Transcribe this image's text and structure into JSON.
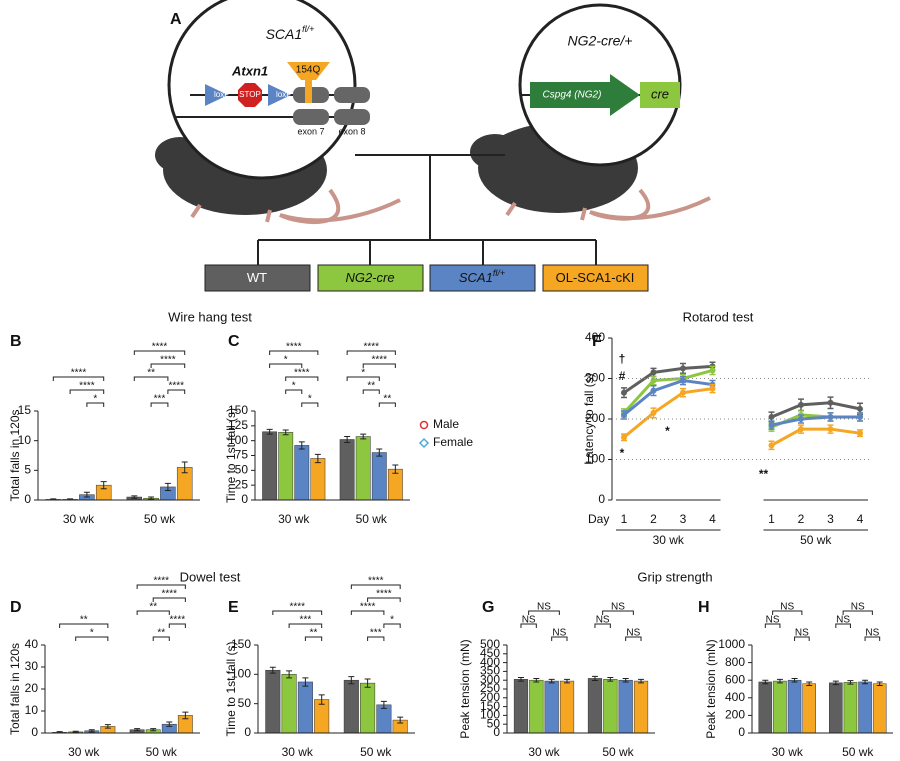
{
  "diagram": {
    "panel": "A",
    "left_title": "SCA1",
    "left_title_sup": "fl/+",
    "gene": "Atxn1",
    "loxp_1": "loxP",
    "stop": "STOP",
    "loxp_2": "loxP",
    "repeat": "154Q",
    "exon_a": "exon 7",
    "exon_b": "exon 8",
    "right_title": "NG2-cre/+",
    "promoter": "Cspg4 (NG2)",
    "cre": "cre"
  },
  "genotypes": [
    {
      "label": "WT",
      "color": "#5f5f5f"
    },
    {
      "label": "NG2-cre",
      "color": "#8dc63f"
    },
    {
      "label": "SCA1",
      "sup": "fl/+",
      "color": "#5b84c4"
    },
    {
      "label": "OL-SCA1-cKI",
      "color": "#f5a623"
    }
  ],
  "section_titles": [
    "Wire hang test",
    "Rotarod test",
    "Dowel test",
    "Grip strength"
  ],
  "sex_legend": [
    {
      "label": "Male",
      "color": "#e03030"
    },
    {
      "label": "Female",
      "color": "#4aaed8"
    }
  ],
  "chart_data": [
    {
      "type": "bar",
      "panel": "B",
      "ylabel": "Total falls in 120s",
      "categories": [
        "30 wk",
        "50 wk"
      ],
      "series": [
        {
          "color": "#5f5f5f",
          "values": [
            0.1,
            0.5
          ],
          "errors": [
            0.1,
            0.2
          ]
        },
        {
          "color": "#8dc63f",
          "values": [
            0.1,
            0.3
          ],
          "errors": [
            0.1,
            0.2
          ]
        },
        {
          "color": "#5b84c4",
          "values": [
            0.9,
            2.2
          ],
          "errors": [
            0.4,
            0.6
          ]
        },
        {
          "color": "#f5a623",
          "values": [
            2.5,
            5.5
          ],
          "errors": [
            0.6,
            0.9
          ]
        }
      ],
      "brackets": [
        [
          "****",
          "****",
          "*"
        ],
        [
          "****",
          "****",
          "**",
          "****",
          "***"
        ]
      ],
      "ylim": [
        0,
        15
      ],
      "yticks": [
        0,
        5,
        10,
        15
      ]
    },
    {
      "type": "bar",
      "panel": "C",
      "ylabel": "Time to 1st fall (s)",
      "categories": [
        "30 wk",
        "50 wk"
      ],
      "series": [
        {
          "color": "#5f5f5f",
          "values": [
            115,
            102
          ],
          "errors": [
            4,
            5
          ]
        },
        {
          "color": "#8dc63f",
          "values": [
            114,
            107
          ],
          "errors": [
            4,
            4
          ]
        },
        {
          "color": "#5b84c4",
          "values": [
            92,
            80
          ],
          "errors": [
            6,
            6
          ]
        },
        {
          "color": "#f5a623",
          "values": [
            70,
            52
          ],
          "errors": [
            7,
            7
          ]
        }
      ],
      "brackets": [
        [
          "****",
          "*",
          "****",
          "*",
          "*"
        ],
        [
          "****",
          "****",
          "*",
          "**",
          "**"
        ]
      ],
      "ylim": [
        0,
        150
      ],
      "yticks": [
        0,
        25,
        50,
        75,
        100,
        125,
        150
      ]
    },
    {
      "type": "bar",
      "panel": "D",
      "ylabel": "Total falls in 120s",
      "categories": [
        "30 wk",
        "50 wk"
      ],
      "series": [
        {
          "color": "#5f5f5f",
          "values": [
            0.3,
            1.5
          ],
          "errors": [
            0.3,
            0.5
          ]
        },
        {
          "color": "#8dc63f",
          "values": [
            0.5,
            1.5
          ],
          "errors": [
            0.3,
            0.5
          ]
        },
        {
          "color": "#5b84c4",
          "values": [
            1.0,
            4
          ],
          "errors": [
            0.5,
            1
          ]
        },
        {
          "color": "#f5a623",
          "values": [
            3.0,
            8
          ],
          "errors": [
            0.8,
            1.5
          ]
        }
      ],
      "brackets": [
        [
          "**",
          "*"
        ],
        [
          "****",
          "****",
          "**",
          "****",
          "**"
        ]
      ],
      "ylim": [
        0,
        40
      ],
      "yticks": [
        0,
        10,
        20,
        30,
        40
      ]
    },
    {
      "type": "bar",
      "panel": "E",
      "ylabel": "Time to 1st fall (s)",
      "categories": [
        "30 wk",
        "50 wk"
      ],
      "series": [
        {
          "color": "#5f5f5f",
          "values": [
            107,
            90
          ],
          "errors": [
            5,
            6
          ]
        },
        {
          "color": "#8dc63f",
          "values": [
            100,
            85
          ],
          "errors": [
            6,
            7
          ]
        },
        {
          "color": "#5b84c4",
          "values": [
            87,
            48
          ],
          "errors": [
            7,
            6
          ]
        },
        {
          "color": "#f5a623",
          "values": [
            57,
            22
          ],
          "errors": [
            8,
            5
          ]
        }
      ],
      "brackets": [
        [
          "****",
          "***",
          "**"
        ],
        [
          "****",
          "****",
          "****",
          "*",
          "***"
        ]
      ],
      "ylim": [
        0,
        150
      ],
      "yticks": [
        0,
        50,
        100,
        150
      ]
    },
    {
      "type": "line",
      "panel": "F",
      "ylabel": "Latency to fall (s)",
      "xlabel": "Day",
      "categories": [
        "1",
        "2",
        "3",
        "4",
        null,
        "1",
        "2",
        "3",
        "4"
      ],
      "groups": [
        "30 wk",
        "50 wk"
      ],
      "series": [
        {
          "color": "#5f5f5f",
          "values": [
            265,
            315,
            325,
            330,
            null,
            205,
            235,
            240,
            225
          ],
          "errors": [
            12,
            10,
            12,
            10,
            null,
            12,
            14,
            14,
            14
          ]
        },
        {
          "color": "#8dc63f",
          "values": [
            215,
            295,
            300,
            320,
            null,
            180,
            210,
            205,
            205
          ],
          "errors": [
            10,
            10,
            10,
            10,
            null,
            10,
            10,
            10,
            10
          ]
        },
        {
          "color": "#5b84c4",
          "values": [
            210,
            270,
            295,
            285,
            null,
            185,
            200,
            205,
            205
          ],
          "errors": [
            10,
            12,
            10,
            10,
            null,
            10,
            10,
            10,
            10
          ]
        },
        {
          "color": "#f5a623",
          "values": [
            155,
            215,
            265,
            275,
            null,
            135,
            175,
            175,
            165
          ],
          "errors": [
            8,
            12,
            10,
            10,
            null,
            10,
            10,
            10,
            8
          ]
        }
      ],
      "annotations": [
        "†",
        "#",
        "*",
        "*",
        "**"
      ],
      "ylim": [
        0,
        400
      ],
      "yticks": [
        0,
        100,
        200,
        300,
        400
      ],
      "grid": "dotted"
    },
    {
      "type": "bar",
      "panel": "G",
      "ylabel": "Peak tension (mN)",
      "categories": [
        "30 wk",
        "50 wk"
      ],
      "series": [
        {
          "color": "#5f5f5f",
          "values": [
            305,
            310
          ],
          "errors": [
            10,
            12
          ]
        },
        {
          "color": "#8dc63f",
          "values": [
            300,
            305
          ],
          "errors": [
            10,
            10
          ]
        },
        {
          "color": "#5b84c4",
          "values": [
            295,
            300
          ],
          "errors": [
            10,
            10
          ]
        },
        {
          "color": "#f5a623",
          "values": [
            295,
            295
          ],
          "errors": [
            10,
            10
          ]
        }
      ],
      "brackets": [
        [
          "NS",
          "NS",
          "NS"
        ],
        [
          "NS",
          "NS",
          "NS"
        ]
      ],
      "ylim": [
        0,
        500
      ],
      "yticks": [
        0,
        50,
        100,
        150,
        200,
        250,
        300,
        350,
        400,
        450,
        500
      ]
    },
    {
      "type": "bar",
      "panel": "H",
      "ylabel": "Peak tension (mN)",
      "categories": [
        "30 wk",
        "50 wk"
      ],
      "series": [
        {
          "color": "#5f5f5f",
          "values": [
            580,
            570
          ],
          "errors": [
            20,
            20
          ]
        },
        {
          "color": "#8dc63f",
          "values": [
            590,
            575
          ],
          "errors": [
            20,
            20
          ]
        },
        {
          "color": "#5b84c4",
          "values": [
            600,
            580
          ],
          "errors": [
            20,
            20
          ]
        },
        {
          "color": "#f5a623",
          "values": [
            560,
            560
          ],
          "errors": [
            20,
            20
          ]
        }
      ],
      "brackets": [
        [
          "NS",
          "NS",
          "NS"
        ],
        [
          "NS",
          "NS",
          "NS"
        ]
      ],
      "ylim": [
        0,
        1000
      ],
      "yticks": [
        0,
        200,
        400,
        600,
        800,
        1000
      ]
    }
  ]
}
